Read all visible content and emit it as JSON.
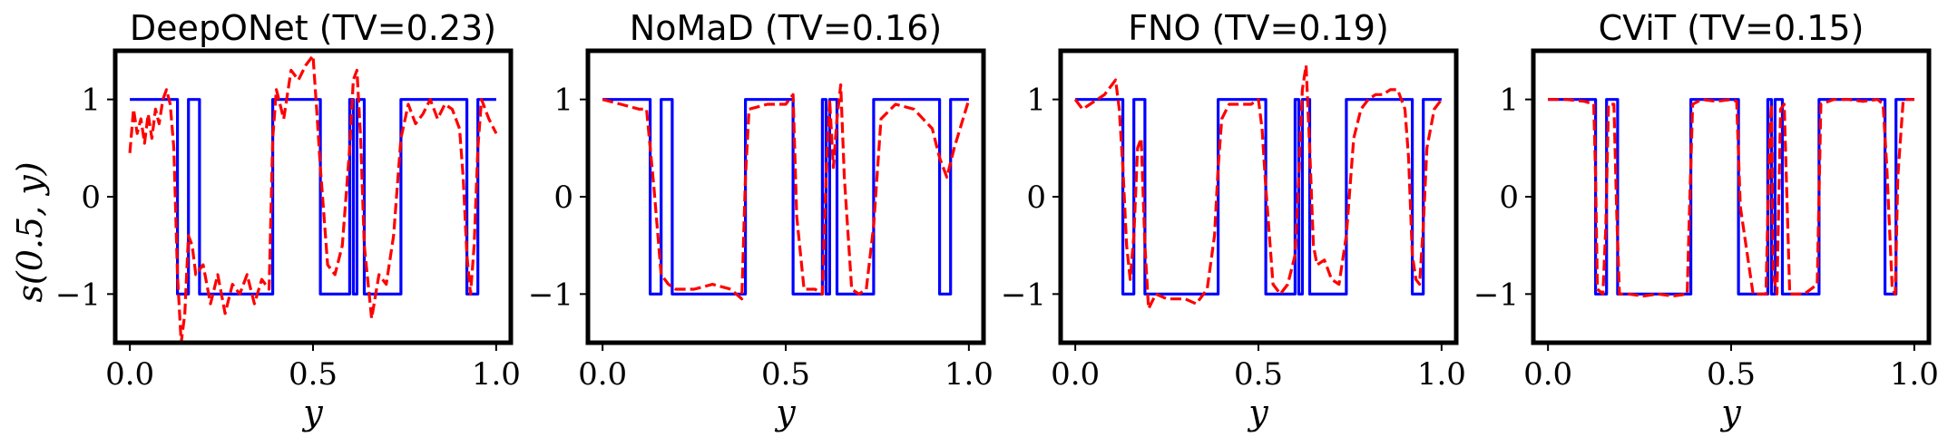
{
  "figure": {
    "ylabel": "s(0.5, y)",
    "xlabel": "y"
  },
  "chart_data": [
    {
      "type": "line",
      "title": "DeepONet (TV=0.23)",
      "xlabel": "y",
      "ylabel": "s(0.5, y)",
      "xlim": [
        -0.04,
        1.04
      ],
      "ylim": [
        -1.5,
        1.5
      ],
      "xticks": [
        0.0,
        0.5,
        1.0
      ],
      "xtick_labels": [
        "0.0",
        "0.5",
        "1.0"
      ],
      "yticks": [
        -1,
        0,
        1
      ],
      "ytick_labels": [
        "−1",
        "0",
        "1"
      ],
      "grid": false,
      "series": [
        {
          "name": "",
          "color": "#0000ff",
          "style": "solid",
          "x": [
            0.0,
            0.13,
            0.13,
            0.16,
            0.16,
            0.19,
            0.19,
            0.39,
            0.39,
            0.52,
            0.52,
            0.6,
            0.6,
            0.61,
            0.61,
            0.62,
            0.62,
            0.64,
            0.64,
            0.74,
            0.74,
            0.92,
            0.92,
            0.95,
            0.95,
            1.0
          ],
          "y": [
            1,
            1,
            -1,
            -1,
            1,
            1,
            -1,
            -1,
            1,
            1,
            -1,
            -1,
            1,
            1,
            -1,
            -1,
            1,
            1,
            -1,
            -1,
            1,
            1,
            -1,
            -1,
            1,
            1
          ]
        },
        {
          "name": "",
          "color": "#ff0000",
          "style": "dashed",
          "x": [
            0.0,
            0.01,
            0.02,
            0.03,
            0.04,
            0.05,
            0.06,
            0.07,
            0.08,
            0.09,
            0.1,
            0.11,
            0.12,
            0.13,
            0.14,
            0.15,
            0.16,
            0.17,
            0.18,
            0.2,
            0.22,
            0.24,
            0.26,
            0.28,
            0.3,
            0.32,
            0.34,
            0.36,
            0.38,
            0.39,
            0.4,
            0.42,
            0.44,
            0.46,
            0.48,
            0.5,
            0.51,
            0.52,
            0.54,
            0.56,
            0.58,
            0.6,
            0.61,
            0.62,
            0.63,
            0.64,
            0.66,
            0.68,
            0.7,
            0.72,
            0.74,
            0.76,
            0.78,
            0.8,
            0.82,
            0.84,
            0.86,
            0.88,
            0.9,
            0.91,
            0.92,
            0.93,
            0.94,
            0.95,
            0.96,
            0.98,
            1.0
          ],
          "y": [
            0.45,
            0.9,
            0.65,
            0.8,
            0.55,
            0.85,
            0.6,
            0.9,
            0.75,
            1.0,
            1.1,
            0.95,
            0.5,
            -0.8,
            -1.5,
            -1.2,
            -0.4,
            -0.5,
            -0.8,
            -0.7,
            -1.1,
            -0.8,
            -1.2,
            -0.9,
            -1.0,
            -0.8,
            -1.1,
            -0.85,
            -0.95,
            0.6,
            1.1,
            0.8,
            1.3,
            1.2,
            1.35,
            1.45,
            0.9,
            0.3,
            -0.7,
            -0.8,
            -0.5,
            0.5,
            1.2,
            1.3,
            0.6,
            -0.5,
            -1.25,
            -0.8,
            -0.9,
            -0.4,
            0.6,
            0.95,
            0.75,
            0.85,
            1.0,
            0.8,
            0.95,
            0.9,
            0.7,
            0.2,
            -0.6,
            -1.0,
            -0.5,
            0.5,
            1.0,
            0.8,
            0.65
          ]
        }
      ]
    },
    {
      "type": "line",
      "title": "NoMaD (TV=0.16)",
      "xlabel": "y",
      "xlim": [
        -0.04,
        1.04
      ],
      "ylim": [
        -1.5,
        1.5
      ],
      "xticks": [
        0.0,
        0.5,
        1.0
      ],
      "xtick_labels": [
        "0.0",
        "0.5",
        "1.0"
      ],
      "yticks": [
        -1,
        0,
        1
      ],
      "ytick_labels": [
        "−1",
        "0",
        "1"
      ],
      "grid": false,
      "series": [
        {
          "name": "",
          "color": "#0000ff",
          "style": "solid",
          "x": [
            0.0,
            0.13,
            0.13,
            0.16,
            0.16,
            0.19,
            0.19,
            0.39,
            0.39,
            0.52,
            0.52,
            0.6,
            0.6,
            0.61,
            0.61,
            0.62,
            0.62,
            0.64,
            0.64,
            0.74,
            0.74,
            0.92,
            0.92,
            0.95,
            0.95,
            1.0
          ],
          "y": [
            1,
            1,
            -1,
            -1,
            1,
            1,
            -1,
            -1,
            1,
            1,
            -1,
            -1,
            1,
            1,
            -1,
            -1,
            1,
            1,
            -1,
            -1,
            1,
            1,
            -1,
            -1,
            1,
            1
          ]
        },
        {
          "name": "",
          "color": "#ff0000",
          "style": "dashed",
          "x": [
            0.0,
            0.05,
            0.1,
            0.12,
            0.14,
            0.16,
            0.18,
            0.2,
            0.25,
            0.3,
            0.35,
            0.38,
            0.39,
            0.4,
            0.45,
            0.5,
            0.52,
            0.53,
            0.55,
            0.58,
            0.6,
            0.61,
            0.62,
            0.63,
            0.64,
            0.65,
            0.66,
            0.68,
            0.7,
            0.72,
            0.74,
            0.76,
            0.8,
            0.85,
            0.9,
            0.92,
            0.94,
            0.96,
            1.0
          ],
          "y": [
            1.0,
            0.95,
            0.9,
            0.9,
            0.1,
            -0.8,
            -0.9,
            -0.95,
            -0.95,
            -0.9,
            -0.95,
            -1.05,
            0.2,
            0.9,
            0.95,
            0.95,
            1.05,
            -0.2,
            -0.95,
            -0.95,
            -1.0,
            0.2,
            1.0,
            0.3,
            0.8,
            1.15,
            0.2,
            -0.95,
            -1.0,
            -0.95,
            -0.3,
            0.8,
            0.95,
            0.9,
            0.7,
            0.4,
            0.2,
            0.5,
            1.0
          ]
        }
      ]
    },
    {
      "type": "line",
      "title": "FNO (TV=0.19)",
      "xlabel": "y",
      "xlim": [
        -0.04,
        1.04
      ],
      "ylim": [
        -1.5,
        1.5
      ],
      "xticks": [
        0.0,
        0.5,
        1.0
      ],
      "xtick_labels": [
        "0.0",
        "0.5",
        "1.0"
      ],
      "yticks": [
        -1,
        0,
        1
      ],
      "ytick_labels": [
        "−1",
        "0",
        "1"
      ],
      "grid": false,
      "series": [
        {
          "name": "",
          "color": "#0000ff",
          "style": "solid",
          "x": [
            0.0,
            0.13,
            0.13,
            0.16,
            0.16,
            0.19,
            0.19,
            0.39,
            0.39,
            0.52,
            0.52,
            0.6,
            0.6,
            0.61,
            0.61,
            0.62,
            0.62,
            0.64,
            0.64,
            0.74,
            0.74,
            0.92,
            0.92,
            0.95,
            0.95,
            1.0
          ],
          "y": [
            1,
            1,
            -1,
            -1,
            1,
            1,
            -1,
            -1,
            1,
            1,
            -1,
            -1,
            1,
            1,
            -1,
            -1,
            1,
            1,
            -1,
            -1,
            1,
            1,
            -1,
            -1,
            1,
            1
          ]
        },
        {
          "name": "",
          "color": "#ff0000",
          "style": "dashed",
          "x": [
            0.0,
            0.02,
            0.04,
            0.06,
            0.08,
            0.1,
            0.11,
            0.12,
            0.13,
            0.14,
            0.15,
            0.16,
            0.17,
            0.18,
            0.19,
            0.2,
            0.22,
            0.25,
            0.3,
            0.33,
            0.36,
            0.38,
            0.39,
            0.4,
            0.42,
            0.45,
            0.48,
            0.5,
            0.51,
            0.52,
            0.54,
            0.56,
            0.58,
            0.6,
            0.61,
            0.62,
            0.63,
            0.64,
            0.65,
            0.66,
            0.68,
            0.7,
            0.72,
            0.74,
            0.76,
            0.78,
            0.8,
            0.82,
            0.84,
            0.86,
            0.88,
            0.9,
            0.91,
            0.92,
            0.93,
            0.94,
            0.95,
            0.96,
            0.98,
            1.0
          ],
          "y": [
            1.0,
            0.9,
            0.95,
            1.0,
            1.05,
            1.15,
            1.2,
            0.9,
            0.3,
            -0.5,
            -0.85,
            -0.4,
            0.5,
            0.6,
            -0.5,
            -1.15,
            -1.0,
            -1.05,
            -1.05,
            -1.1,
            -0.95,
            -0.4,
            0.3,
            0.8,
            0.95,
            0.95,
            0.95,
            1.0,
            0.7,
            0.1,
            -0.9,
            -1.0,
            -0.9,
            -0.6,
            0.2,
            1.1,
            1.35,
            0.5,
            -0.5,
            -0.7,
            -0.65,
            -0.85,
            -0.9,
            -0.4,
            0.6,
            0.9,
            1.0,
            1.05,
            1.05,
            1.1,
            1.1,
            0.9,
            0.4,
            -0.6,
            -0.85,
            -0.9,
            -0.3,
            0.5,
            0.9,
            1.0
          ]
        }
      ]
    },
    {
      "type": "line",
      "title": "CViT (TV=0.15)",
      "xlabel": "y",
      "xlim": [
        -0.04,
        1.04
      ],
      "ylim": [
        -1.5,
        1.5
      ],
      "xticks": [
        0.0,
        0.5,
        1.0
      ],
      "xtick_labels": [
        "0.0",
        "0.5",
        "1.0"
      ],
      "yticks": [
        -1,
        0,
        1
      ],
      "ytick_labels": [
        "−1",
        "0",
        "1"
      ],
      "grid": false,
      "series": [
        {
          "name": "",
          "color": "#0000ff",
          "style": "solid",
          "x": [
            0.0,
            0.13,
            0.13,
            0.16,
            0.16,
            0.19,
            0.19,
            0.39,
            0.39,
            0.52,
            0.52,
            0.6,
            0.6,
            0.61,
            0.61,
            0.62,
            0.62,
            0.64,
            0.64,
            0.74,
            0.74,
            0.92,
            0.92,
            0.95,
            0.95,
            1.0
          ],
          "y": [
            1,
            1,
            -1,
            -1,
            1,
            1,
            -1,
            -1,
            1,
            1,
            -1,
            -1,
            1,
            1,
            -1,
            -1,
            1,
            1,
            -1,
            -1,
            1,
            1,
            -1,
            -1,
            1,
            1
          ]
        },
        {
          "name": "",
          "color": "#ff0000",
          "style": "dashed",
          "x": [
            0.0,
            0.05,
            0.1,
            0.125,
            0.13,
            0.135,
            0.15,
            0.158,
            0.165,
            0.18,
            0.188,
            0.195,
            0.22,
            0.26,
            0.3,
            0.34,
            0.38,
            0.385,
            0.395,
            0.42,
            0.46,
            0.5,
            0.515,
            0.525,
            0.56,
            0.595,
            0.605,
            0.61,
            0.615,
            0.625,
            0.635,
            0.645,
            0.66,
            0.7,
            0.735,
            0.745,
            0.78,
            0.82,
            0.86,
            0.9,
            0.915,
            0.925,
            0.94,
            0.948,
            0.955,
            0.97,
            1.0
          ],
          "y": [
            1.0,
            1.0,
            0.98,
            0.95,
            0.2,
            -0.95,
            -1.0,
            -0.3,
            0.95,
            0.95,
            -0.2,
            -1.0,
            -1.0,
            -1.02,
            -1.0,
            -1.02,
            -1.0,
            -0.3,
            0.95,
            1.0,
            0.98,
            1.0,
            0.98,
            -0.1,
            -1.0,
            -1.0,
            0.6,
            0.95,
            -0.8,
            -1.0,
            0.9,
            0.95,
            -1.0,
            -1.0,
            -0.9,
            0.95,
            1.0,
            1.0,
            0.98,
            1.0,
            0.95,
            0.3,
            -0.95,
            -1.0,
            0.2,
            1.0,
            1.0
          ]
        }
      ]
    }
  ]
}
